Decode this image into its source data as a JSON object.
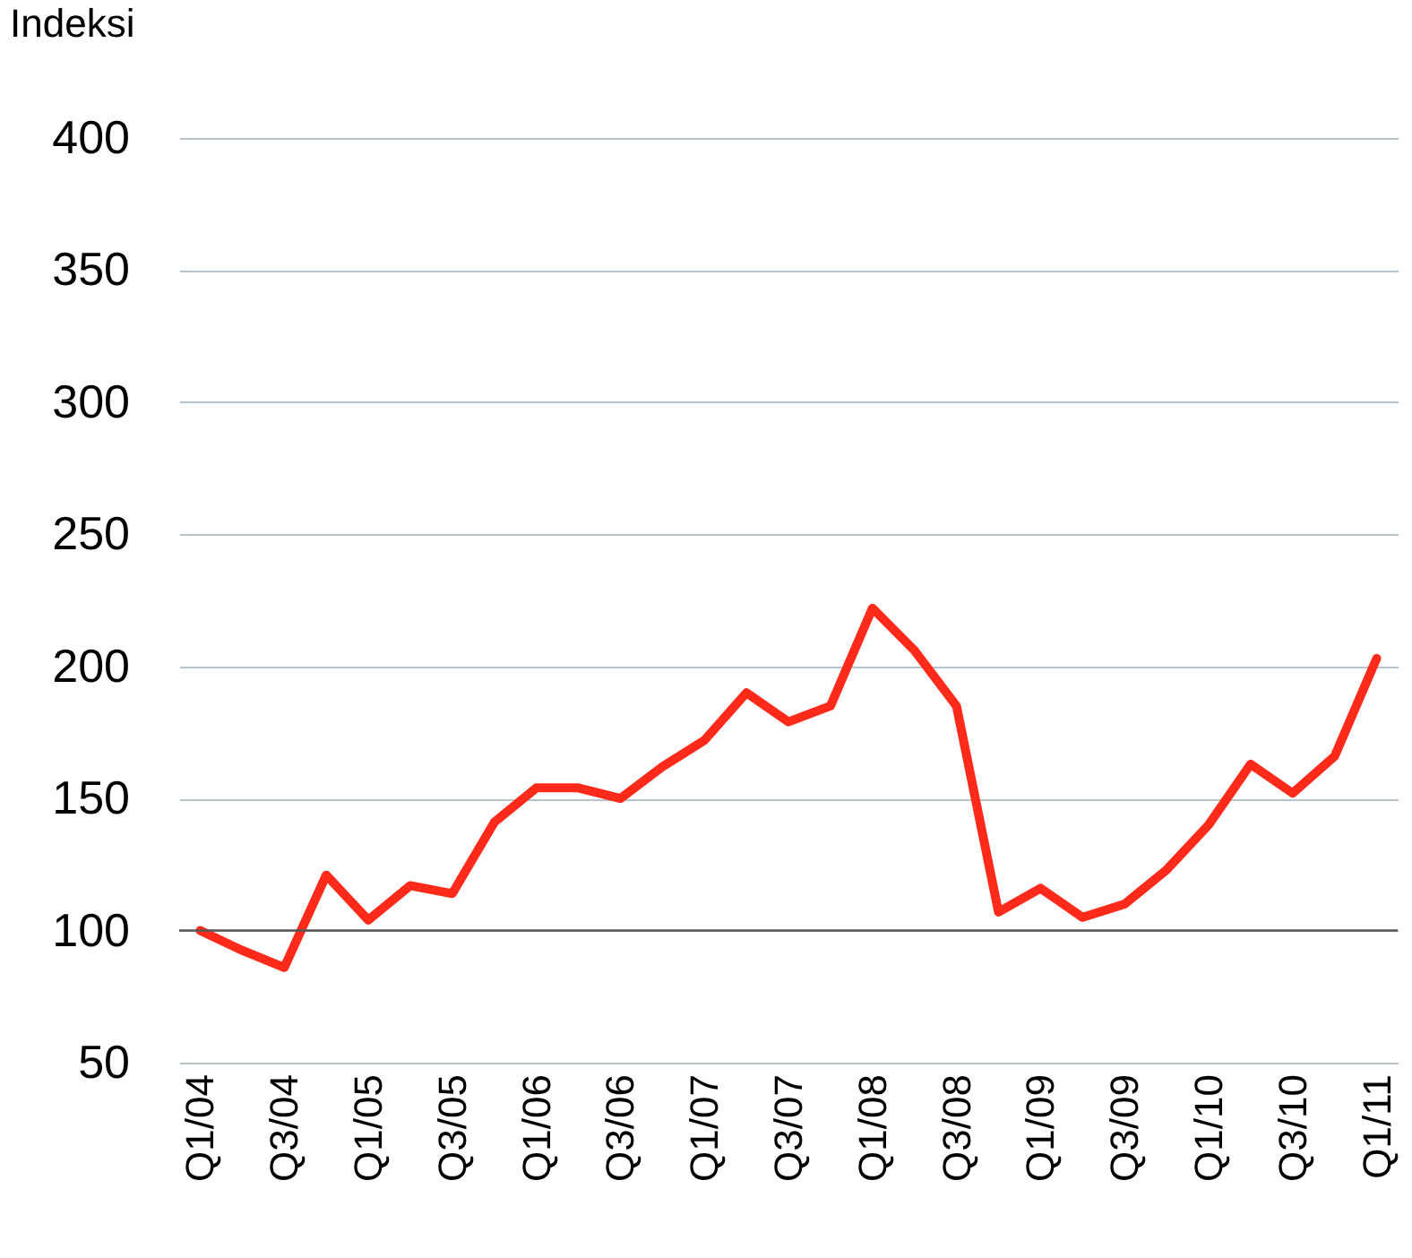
{
  "chart_data": {
    "type": "line",
    "ylabel": "Indeksi",
    "categories": [
      "Q1/04",
      null,
      "Q3/04",
      null,
      "Q1/05",
      null,
      "Q3/05",
      null,
      "Q1/06",
      null,
      "Q3/06",
      null,
      "Q1/07",
      null,
      "Q3/07",
      null,
      "Q1/08",
      null,
      "Q3/08",
      null,
      "Q1/09",
      null,
      "Q3/09",
      null,
      "Q1/10",
      null,
      "Q3/10",
      null,
      "Q1/11"
    ],
    "series": [
      {
        "color": "#ff2a1a",
        "values": [
          100,
          92.5,
          86,
          121,
          104,
          117,
          114,
          141,
          154,
          154,
          150,
          162,
          172,
          190,
          179,
          185,
          222,
          206,
          185,
          107,
          116,
          105,
          110,
          123,
          140,
          163,
          152,
          166,
          203
        ]
      }
    ],
    "ylim": [
      50,
      400
    ],
    "yticks": [
      50,
      100,
      150,
      200,
      250,
      300,
      350,
      400
    ],
    "grid": "y",
    "legend": false,
    "line_style": "solid",
    "ref_lines": [
      {
        "axis": "y",
        "value": 100,
        "color": "#555555"
      }
    ]
  }
}
